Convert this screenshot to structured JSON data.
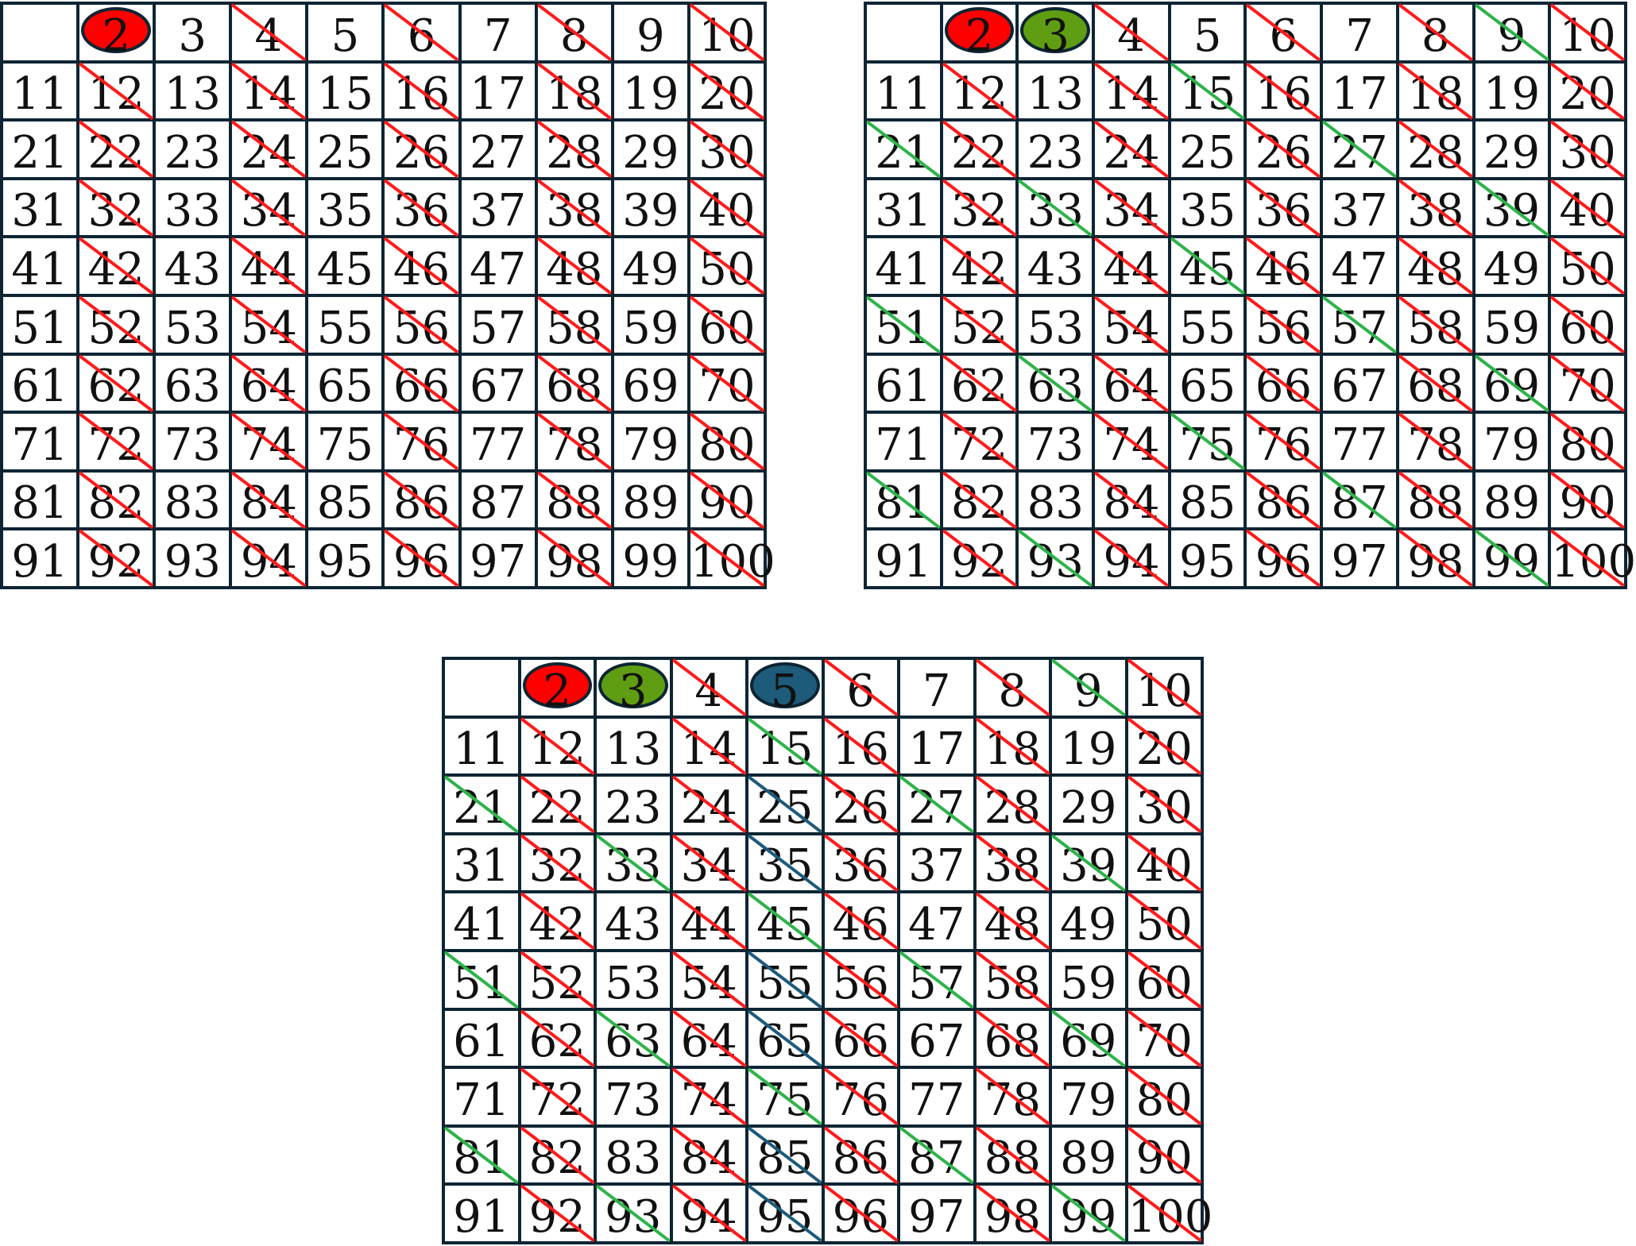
{
  "colors": {
    "two": "#ff0000",
    "three": "#5f9e12",
    "five": "#1e5a7a",
    "strike_two": "#ff1a1a",
    "strike_three": "#2db34a",
    "strike_five": "#1e5a7a",
    "grid_line": "#0d2533"
  },
  "grids": [
    {
      "id": "grid-a",
      "numbers": [
        "",
        "2",
        "3",
        "4",
        "5",
        "6",
        "7",
        "8",
        "9",
        "10",
        "11",
        "12",
        "13",
        "14",
        "15",
        "16",
        "17",
        "18",
        "19",
        "20",
        "21",
        "22",
        "23",
        "24",
        "25",
        "26",
        "27",
        "28",
        "29",
        "30",
        "31",
        "32",
        "33",
        "34",
        "35",
        "36",
        "37",
        "38",
        "39",
        "40",
        "41",
        "42",
        "43",
        "44",
        "45",
        "46",
        "47",
        "48",
        "49",
        "50",
        "51",
        "52",
        "53",
        "54",
        "55",
        "56",
        "57",
        "58",
        "59",
        "60",
        "61",
        "62",
        "63",
        "64",
        "65",
        "66",
        "67",
        "68",
        "69",
        "70",
        "71",
        "72",
        "73",
        "74",
        "75",
        "76",
        "77",
        "78",
        "79",
        "80",
        "81",
        "82",
        "83",
        "84",
        "85",
        "86",
        "87",
        "88",
        "89",
        "90",
        "91",
        "92",
        "93",
        "94",
        "95",
        "96",
        "97",
        "98",
        "99",
        "100"
      ],
      "circled": [
        2
      ],
      "strike_primes": [
        2
      ]
    },
    {
      "id": "grid-b",
      "numbers": [
        "",
        "2",
        "3",
        "4",
        "5",
        "6",
        "7",
        "8",
        "9",
        "10",
        "11",
        "12",
        "13",
        "14",
        "15",
        "16",
        "17",
        "18",
        "19",
        "20",
        "21",
        "22",
        "23",
        "24",
        "25",
        "26",
        "27",
        "28",
        "29",
        "30",
        "31",
        "32",
        "33",
        "34",
        "35",
        "36",
        "37",
        "38",
        "39",
        "40",
        "41",
        "42",
        "43",
        "44",
        "45",
        "46",
        "47",
        "48",
        "49",
        "50",
        "51",
        "52",
        "53",
        "54",
        "55",
        "56",
        "57",
        "58",
        "59",
        "60",
        "61",
        "62",
        "63",
        "64",
        "65",
        "66",
        "67",
        "68",
        "69",
        "70",
        "71",
        "72",
        "73",
        "74",
        "75",
        "76",
        "77",
        "78",
        "79",
        "80",
        "81",
        "82",
        "83",
        "84",
        "85",
        "86",
        "87",
        "88",
        "89",
        "90",
        "91",
        "92",
        "93",
        "94",
        "95",
        "96",
        "97",
        "98",
        "99",
        "100"
      ],
      "circled": [
        2,
        3
      ],
      "strike_primes": [
        2,
        3
      ]
    },
    {
      "id": "grid-c",
      "numbers": [
        "",
        "2",
        "3",
        "4",
        "5",
        "6",
        "7",
        "8",
        "9",
        "10",
        "11",
        "12",
        "13",
        "14",
        "15",
        "16",
        "17",
        "18",
        "19",
        "20",
        "21",
        "22",
        "23",
        "24",
        "25",
        "26",
        "27",
        "28",
        "29",
        "30",
        "31",
        "32",
        "33",
        "34",
        "35",
        "36",
        "37",
        "38",
        "39",
        "40",
        "41",
        "42",
        "43",
        "44",
        "45",
        "46",
        "47",
        "48",
        "49",
        "50",
        "51",
        "52",
        "53",
        "54",
        "55",
        "56",
        "57",
        "58",
        "59",
        "60",
        "61",
        "62",
        "63",
        "64",
        "65",
        "66",
        "67",
        "68",
        "69",
        "70",
        "71",
        "72",
        "73",
        "74",
        "75",
        "76",
        "77",
        "78",
        "79",
        "80",
        "81",
        "82",
        "83",
        "84",
        "85",
        "86",
        "87",
        "88",
        "89",
        "90",
        "91",
        "92",
        "93",
        "94",
        "95",
        "96",
        "97",
        "98",
        "99",
        "100"
      ],
      "circled": [
        2,
        3,
        5
      ],
      "strike_primes": [
        2,
        3,
        5
      ]
    }
  ]
}
